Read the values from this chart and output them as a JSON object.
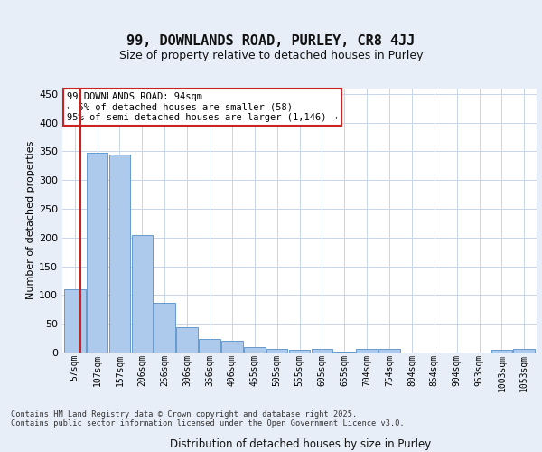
{
  "title_line1": "99, DOWNLANDS ROAD, PURLEY, CR8 4JJ",
  "title_line2": "Size of property relative to detached houses in Purley",
  "xlabel": "Distribution of detached houses by size in Purley",
  "ylabel": "Number of detached properties",
  "categories": [
    "57sqm",
    "107sqm",
    "157sqm",
    "206sqm",
    "256sqm",
    "306sqm",
    "356sqm",
    "406sqm",
    "455sqm",
    "505sqm",
    "555sqm",
    "605sqm",
    "655sqm",
    "704sqm",
    "754sqm",
    "804sqm",
    "854sqm",
    "904sqm",
    "953sqm",
    "1003sqm",
    "1053sqm"
  ],
  "values": [
    110,
    347,
    344,
    204,
    86,
    44,
    24,
    20,
    10,
    6,
    4,
    6,
    2,
    6,
    6,
    0,
    0,
    0,
    0,
    5,
    6
  ],
  "bar_color": "#adc9eb",
  "bar_edge_color": "#6699cc",
  "vline_color": "#cc2222",
  "vline_x_bin": 0,
  "annotation_text": "99 DOWNLANDS ROAD: 94sqm\n← 5% of detached houses are smaller (58)\n95% of semi-detached houses are larger (1,146) →",
  "annotation_box_edge_color": "#cc2222",
  "ylim": [
    0,
    460
  ],
  "yticks": [
    0,
    50,
    100,
    150,
    200,
    250,
    300,
    350,
    400,
    450
  ],
  "footer_text": "Contains HM Land Registry data © Crown copyright and database right 2025.\nContains public sector information licensed under the Open Government Licence v3.0.",
  "background_color": "#e8eef8",
  "plot_background": "#ffffff",
  "grid_color": "#c8d4e8"
}
